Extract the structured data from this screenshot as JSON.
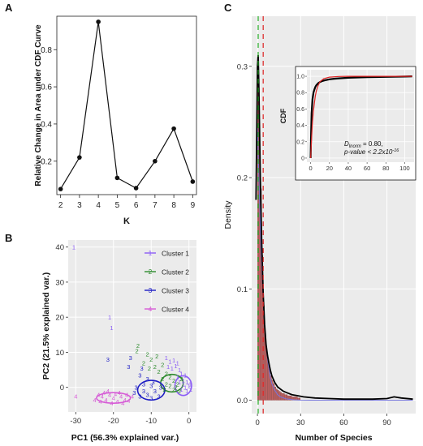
{
  "panels": {
    "a": {
      "label": "A"
    },
    "b": {
      "label": "B"
    },
    "c": {
      "label": "C"
    }
  },
  "colors": {
    "cluster1": "#8b5cf6",
    "cluster2": "#2e8b2e",
    "cluster3": "#1c1cc4",
    "cluster4": "#d65bd6",
    "panel_bg": "#ebebeb",
    "grid": "#ffffff",
    "hist_bar": "#c46060",
    "kde": "#000000",
    "fit": "#7777dd",
    "green_line": "#22aa22",
    "red_line": "#dd2222",
    "inset_cdf_fit": "#dd2222"
  },
  "chart_data": [
    {
      "id": "A",
      "type": "line",
      "title": "",
      "xlabel": "K",
      "ylabel": "Relative Change in Area under CDF Curve",
      "x": [
        2,
        3,
        4,
        5,
        6,
        7,
        8,
        9
      ],
      "values": [
        0.05,
        0.22,
        0.95,
        0.11,
        0.055,
        0.2,
        0.375,
        0.09
      ],
      "xlim": [
        1.8,
        9.2
      ],
      "ylim": [
        0.02,
        0.98
      ],
      "xticks": [
        "2",
        "3",
        "4",
        "5",
        "6",
        "7",
        "8",
        "9"
      ],
      "yticks": [
        "0.2",
        "0.4",
        "0.6",
        "0.8"
      ],
      "ytick_values": [
        0.2,
        0.4,
        0.6,
        0.8
      ],
      "grid": false
    },
    {
      "id": "B",
      "type": "scatter",
      "title": "",
      "xlabel": "PC1 (56.3% explained var.)",
      "ylabel": "PC2 (21.5% explained var.)",
      "xlim": [
        -32,
        2
      ],
      "ylim": [
        -7,
        42
      ],
      "xticks": [
        "-30",
        "-20",
        "-10",
        "0"
      ],
      "xtick_values": [
        -30,
        -20,
        -10,
        0
      ],
      "yticks": [
        "0",
        "10",
        "20",
        "30",
        "40"
      ],
      "ytick_values": [
        0,
        10,
        20,
        30,
        40
      ],
      "grid": true,
      "legend_position": "top-right",
      "series": [
        {
          "name": "Cluster 1",
          "marker": "1",
          "color_key": "cluster1",
          "ellipse": {
            "cx": -1.5,
            "cy": 0.5,
            "rx": 2.2,
            "ry": 2.8
          },
          "points": [
            [
              -30.5,
              40
            ],
            [
              -21,
              20
            ],
            [
              -20.5,
              17
            ],
            [
              -6,
              8.5
            ],
            [
              -5,
              7.5
            ],
            [
              -4,
              7.8
            ],
            [
              -3,
              7
            ],
            [
              -5.5,
              6
            ],
            [
              -4.5,
              5.5
            ],
            [
              -3.5,
              6.2
            ],
            [
              -2.5,
              5
            ],
            [
              -2,
              4
            ],
            [
              -1,
              3.5
            ],
            [
              -3,
              3
            ],
            [
              -1.5,
              2
            ],
            [
              -0.5,
              1.5
            ],
            [
              0,
              0.5
            ],
            [
              -1,
              0
            ],
            [
              0.5,
              -0.5
            ],
            [
              -2,
              -0.5
            ],
            [
              -0.5,
              -1
            ],
            [
              -1.5,
              1
            ],
            [
              -2.5,
              1.5
            ],
            [
              0.3,
              1
            ]
          ]
        },
        {
          "name": "Cluster 2",
          "marker": "2",
          "color_key": "cluster2",
          "ellipse": {
            "cx": -4.5,
            "cy": 1.2,
            "rx": 3,
            "ry": 2.5
          },
          "points": [
            [
              -13.5,
              12
            ],
            [
              -13.8,
              10.5
            ],
            [
              -11,
              9.5
            ],
            [
              -8.5,
              9
            ],
            [
              -10,
              8
            ],
            [
              -12,
              7
            ],
            [
              -9,
              6
            ],
            [
              -7,
              6.5
            ],
            [
              -10.5,
              5.5
            ],
            [
              -8,
              4.5
            ],
            [
              -6,
              4
            ],
            [
              -5,
              3
            ],
            [
              -7,
              2.5
            ],
            [
              -4,
              2
            ],
            [
              -6,
              1
            ],
            [
              -5,
              0.5
            ],
            [
              -3,
              1
            ],
            [
              -4,
              -0.5
            ],
            [
              -2.5,
              -1
            ],
            [
              -3.5,
              0
            ],
            [
              -6.5,
              -0.5
            ],
            [
              -2,
              2.5
            ]
          ]
        },
        {
          "name": "Cluster 3",
          "marker": "3",
          "color_key": "cluster3",
          "ellipse": {
            "cx": -10,
            "cy": -0.8,
            "rx": 3.6,
            "ry": 2.8
          },
          "points": [
            [
              -21.5,
              8
            ],
            [
              -15.5,
              8.5
            ],
            [
              -16,
              6
            ],
            [
              -12.5,
              5.5
            ],
            [
              -13,
              3.5
            ],
            [
              -11,
              2.5
            ],
            [
              -12,
              1
            ],
            [
              -14,
              0
            ],
            [
              -10,
              0.5
            ],
            [
              -9,
              -1
            ],
            [
              -11,
              -2
            ],
            [
              -13,
              -2.5
            ],
            [
              -8,
              -2.5
            ],
            [
              -10,
              -3
            ],
            [
              -12,
              -1
            ],
            [
              -7.5,
              0
            ],
            [
              -9.5,
              1.5
            ],
            [
              -14.5,
              -1.5
            ]
          ]
        },
        {
          "name": "Cluster 4",
          "marker": "4",
          "color_key": "cluster4",
          "ellipse": {
            "cx": -20,
            "cy": -3,
            "rx": 4.5,
            "ry": 1.5
          },
          "points": [
            [
              -30,
              -2.5
            ],
            [
              -24,
              -2
            ],
            [
              -23,
              -2.5
            ],
            [
              -22,
              -3.5
            ],
            [
              -21,
              -2
            ],
            [
              -20,
              -3
            ],
            [
              -19,
              -4
            ],
            [
              -18,
              -2.5
            ],
            [
              -17,
              -3.5
            ],
            [
              -16.5,
              -2
            ],
            [
              -15,
              -2.5
            ],
            [
              -23.5,
              -4
            ],
            [
              -20.5,
              -4.5
            ],
            [
              -18.5,
              -1.5
            ],
            [
              -25,
              -3.5
            ],
            [
              -21.5,
              -1
            ],
            [
              -17.5,
              -4.5
            ],
            [
              -19.5,
              -1.8
            ],
            [
              -16,
              -3.8
            ],
            [
              -22.5,
              -1.5
            ]
          ]
        }
      ]
    },
    {
      "id": "C",
      "type": "bar",
      "title": "",
      "xlabel": "Number of Species",
      "ylabel": "Density",
      "xlim": [
        -4,
        110
      ],
      "ylim": [
        -0.012,
        0.345
      ],
      "xticks": [
        "0",
        "30",
        "60",
        "90"
      ],
      "xtick_values": [
        0,
        30,
        60,
        90
      ],
      "yticks": [
        "0.0",
        "0.1",
        "0.2",
        "0.3"
      ],
      "ytick_values": [
        0,
        0.1,
        0.2,
        0.3
      ],
      "grid": true,
      "green_line_x": 0.5,
      "red_line_x": 4,
      "histogram": {
        "bin_width": 1,
        "bin_starts": [
          0,
          1,
          2,
          3,
          4,
          5,
          6,
          7,
          8,
          9,
          10,
          11,
          12,
          13,
          14,
          15,
          16,
          17,
          18,
          19,
          20,
          21,
          22,
          23,
          24,
          25,
          26,
          27,
          28,
          29
        ],
        "values": [
          0.31,
          0.245,
          0.19,
          0.13,
          0.085,
          0.06,
          0.045,
          0.035,
          0.028,
          0.022,
          0.018,
          0.015,
          0.012,
          0.01,
          0.009,
          0.008,
          0.007,
          0.006,
          0.006,
          0.005,
          0.005,
          0.004,
          0.004,
          0.004,
          0.003,
          0.003,
          0.003,
          0.003,
          0.002,
          0.002
        ]
      },
      "kde": {
        "x": [
          -1,
          0,
          0.5,
          1,
          2,
          3,
          4,
          5,
          6,
          7,
          8,
          9,
          10,
          12,
          14,
          16,
          18,
          20,
          24,
          28,
          32,
          40,
          50,
          60,
          70,
          80,
          90,
          95,
          100,
          108
        ],
        "y": [
          0.18,
          0.3,
          0.31,
          0.28,
          0.2,
          0.14,
          0.095,
          0.068,
          0.05,
          0.04,
          0.033,
          0.027,
          0.022,
          0.016,
          0.012,
          0.01,
          0.008,
          0.007,
          0.005,
          0.004,
          0.003,
          0.002,
          0.0015,
          0.001,
          0.001,
          0.001,
          0.0015,
          0.003,
          0.002,
          0.001
        ]
      },
      "fit": {
        "x": [
          0,
          1,
          2,
          3,
          4,
          5,
          6,
          7,
          8,
          9,
          10,
          12,
          14,
          16,
          20,
          25,
          30,
          40,
          60,
          108
        ],
        "y": [
          0.245,
          0.2,
          0.155,
          0.12,
          0.09,
          0.068,
          0.05,
          0.037,
          0.028,
          0.02,
          0.015,
          0.009,
          0.005,
          0.003,
          0.0012,
          0.0004,
          0.0001,
          0,
          0,
          0
        ]
      },
      "inset": {
        "type": "line",
        "xlabel": "",
        "ylabel": "CDF",
        "xlim": [
          -4,
          110
        ],
        "ylim": [
          -0.05,
          1.08
        ],
        "xticks": [
          "0",
          "20",
          "40",
          "60",
          "80",
          "100"
        ],
        "xtick_values": [
          0,
          20,
          40,
          60,
          80,
          100
        ],
        "yticks": [
          "0",
          "0.2",
          "0.4",
          "0.6",
          "0.8",
          "1.0"
        ],
        "ytick_values": [
          0,
          0.2,
          0.4,
          0.6,
          0.8,
          1.0
        ],
        "empirical": {
          "x": [
            0,
            0.5,
            1,
            2,
            3,
            4,
            5,
            6,
            8,
            10,
            12,
            15,
            20,
            25,
            30,
            40,
            50,
            60,
            80,
            100,
            108
          ],
          "y": [
            0,
            0.3,
            0.55,
            0.72,
            0.8,
            0.84,
            0.87,
            0.89,
            0.915,
            0.93,
            0.94,
            0.95,
            0.963,
            0.97,
            0.975,
            0.982,
            0.986,
            0.989,
            0.993,
            0.997,
            1.0
          ]
        },
        "fitted": {
          "x": [
            0,
            1,
            2,
            3,
            4,
            5,
            6,
            8,
            10,
            14,
            20,
            30,
            40,
            60,
            108
          ],
          "y": [
            0,
            0.25,
            0.45,
            0.58,
            0.68,
            0.76,
            0.82,
            0.89,
            0.935,
            0.97,
            0.99,
            0.998,
            1.0,
            1.0,
            1.0
          ]
        },
        "annotation_d_prefix": "D",
        "annotation_d_sub": "lnorm",
        "annotation_d_rest": " = 0.80,",
        "annotation_p": "p-value < 2.2x10",
        "annotation_p_exp": "-16"
      }
    }
  ]
}
